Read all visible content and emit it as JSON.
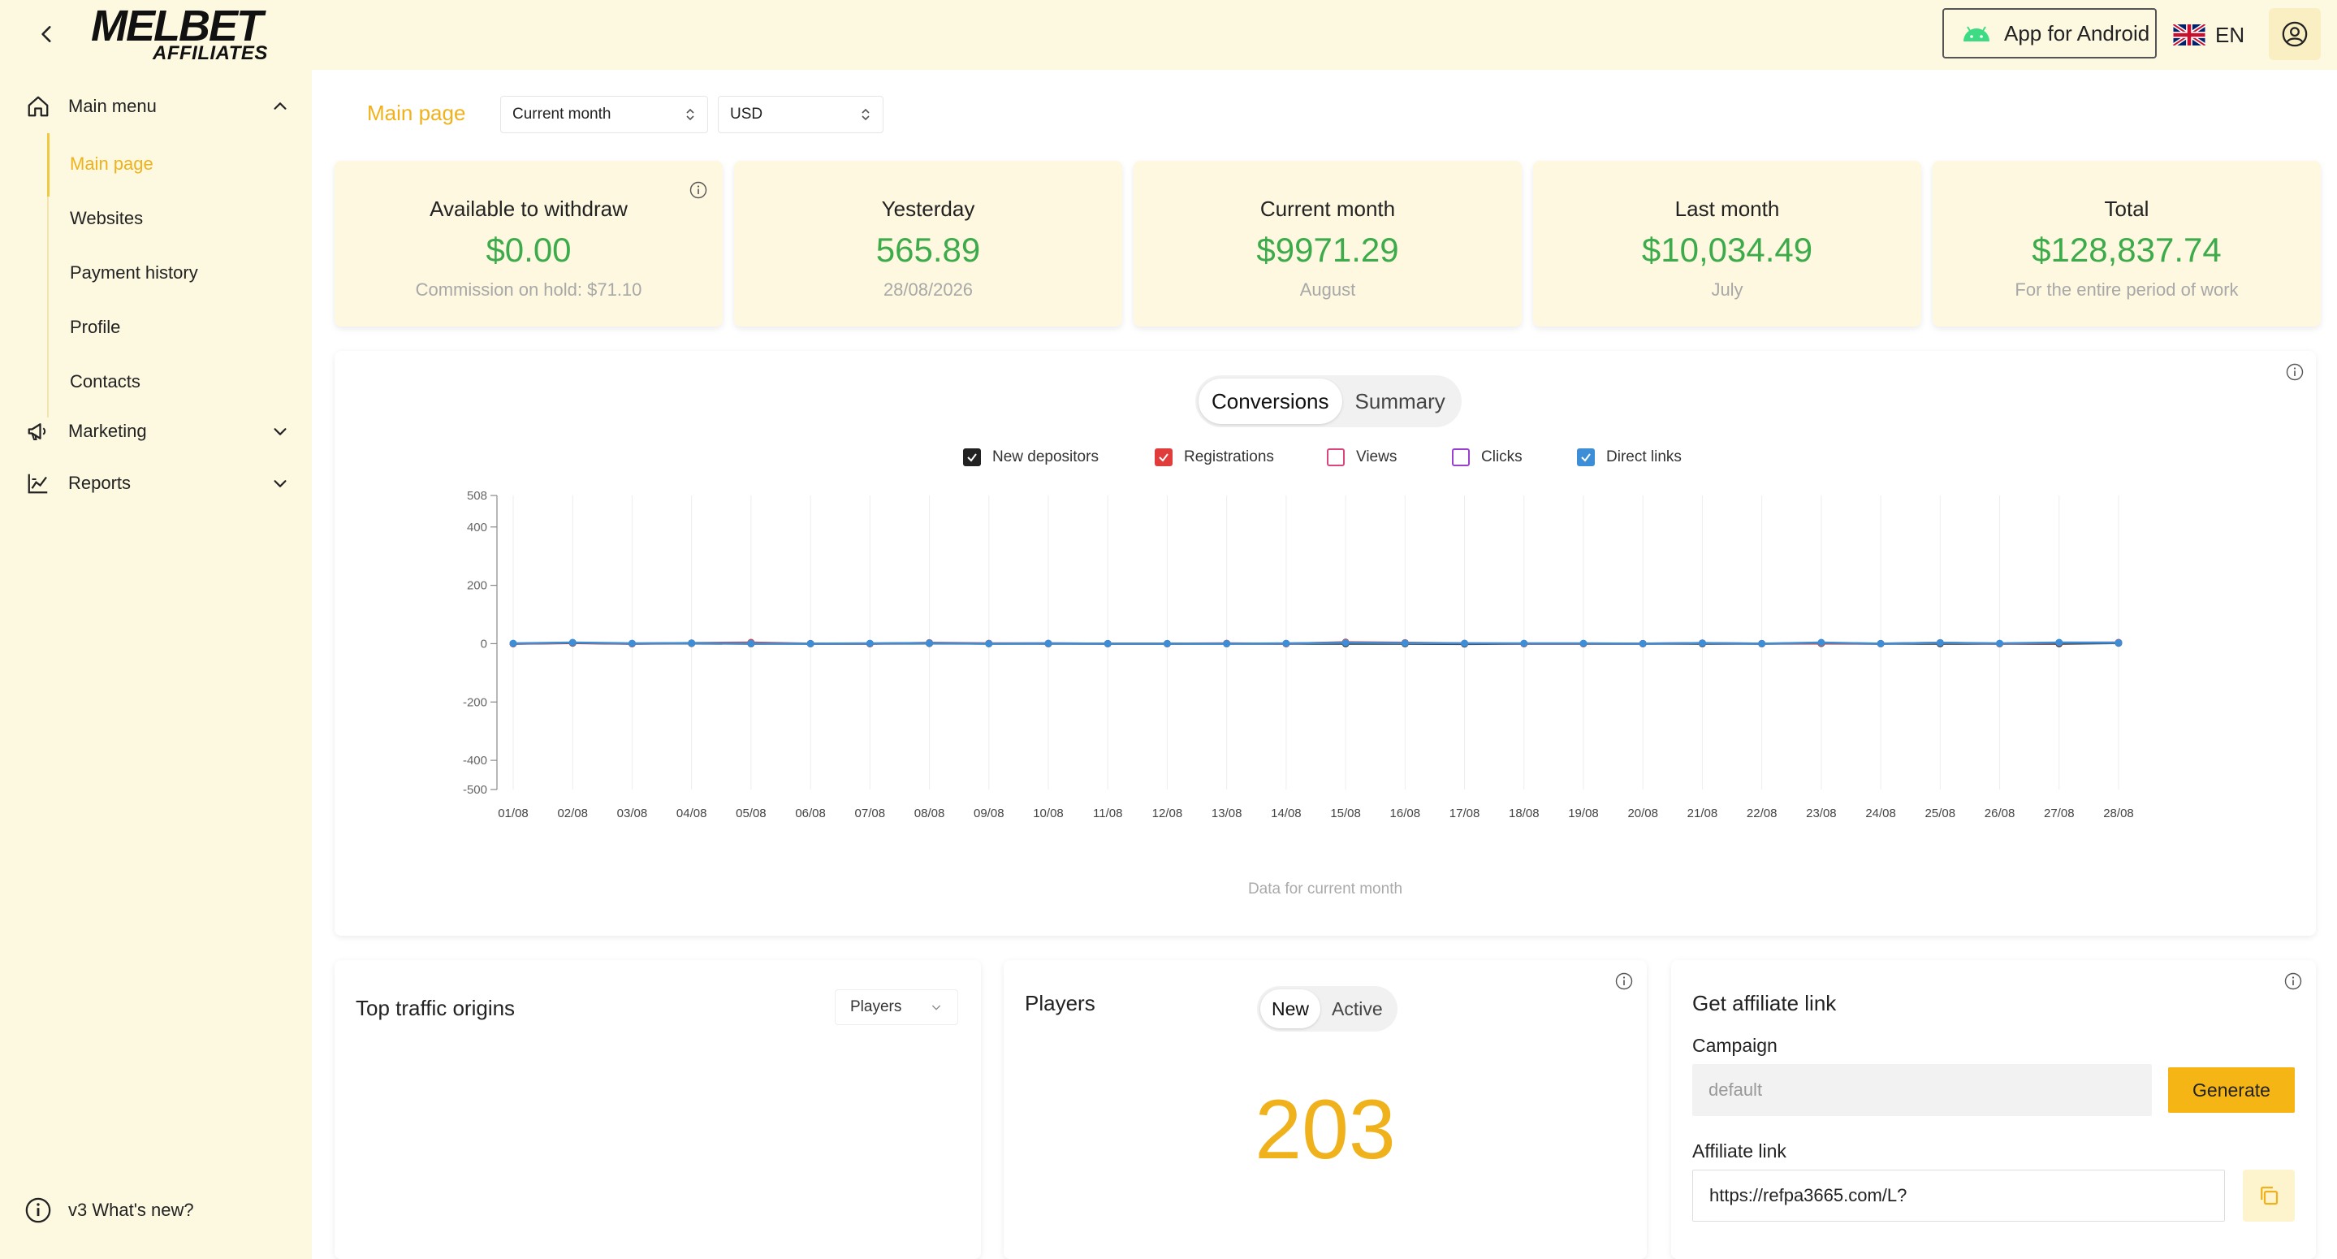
{
  "header": {
    "logo_main": "MELBET",
    "logo_sub": "AFFILIATES",
    "android_label": "App for Android",
    "lang_label": "EN"
  },
  "sidebar": {
    "main_menu": "Main menu",
    "sub_items": [
      "Main page",
      "Websites",
      "Payment history",
      "Profile",
      "Contacts"
    ],
    "marketing": "Marketing",
    "reports": "Reports",
    "whats_new": "v3 What's new?"
  },
  "toolbar": {
    "breadcrumb": "Main page",
    "period": "Current month",
    "currency": "USD"
  },
  "stats": [
    {
      "title": "Available to withdraw",
      "value": "$0.00",
      "sub": "Commission on hold: $71.10"
    },
    {
      "title": "Yesterday",
      "value": "565.89",
      "sub": "28/08/2026"
    },
    {
      "title": "Current month",
      "value": "$9971.29",
      "sub": "August"
    },
    {
      "title": "Last month",
      "value": "$10,034.49",
      "sub": "July"
    },
    {
      "title": "Total",
      "value": "$128,837.74",
      "sub": "For the entire period of work"
    }
  ],
  "chart_tabs": {
    "conversions": "Conversions",
    "summary": "Summary"
  },
  "legend": [
    {
      "name": "New depositors",
      "checked": true,
      "color": "#222222"
    },
    {
      "name": "Registrations",
      "checked": true,
      "color": "#e03c3c"
    },
    {
      "name": "Views",
      "checked": false,
      "color": "#d9467e"
    },
    {
      "name": "Clicks",
      "checked": false,
      "color": "#9a3fcf"
    },
    {
      "name": "Direct links",
      "checked": true,
      "color": "#3d8ed6"
    }
  ],
  "chart_footer": "Data for current month",
  "chart_data": {
    "type": "line",
    "x": [
      "01/08",
      "02/08",
      "03/08",
      "04/08",
      "05/08",
      "06/08",
      "07/08",
      "08/08",
      "09/08",
      "10/08",
      "11/08",
      "12/08",
      "13/08",
      "14/08",
      "15/08",
      "16/08",
      "17/08",
      "18/08",
      "19/08",
      "20/08",
      "21/08",
      "22/08",
      "23/08",
      "24/08",
      "25/08",
      "26/08",
      "27/08",
      "28/08"
    ],
    "y_ticks": [
      508,
      400,
      200,
      0,
      -200,
      -400,
      -500
    ],
    "ylim": [
      -500,
      508
    ],
    "series": [
      {
        "name": "New depositors",
        "color": "#333333",
        "values": [
          0,
          2,
          0,
          1,
          0,
          0,
          0,
          1,
          0,
          0,
          0,
          0,
          0,
          0,
          0,
          0,
          -1,
          0,
          0,
          0,
          0,
          0,
          1,
          0,
          0,
          0,
          0,
          2
        ]
      },
      {
        "name": "Registrations",
        "color": "#e03c3c",
        "values": [
          0,
          3,
          0,
          2,
          4,
          0,
          0,
          3,
          1,
          1,
          0,
          0,
          1,
          0,
          5,
          3,
          1,
          0,
          0,
          0,
          2,
          0,
          2,
          0,
          3,
          0,
          3,
          4
        ]
      },
      {
        "name": "Direct links",
        "color": "#3d8ed6",
        "values": [
          1,
          4,
          1,
          2,
          1,
          0,
          1,
          2,
          0,
          1,
          0,
          0,
          0,
          1,
          3,
          2,
          1,
          1,
          1,
          0,
          2,
          0,
          4,
          0,
          3,
          1,
          4,
          3
        ]
      }
    ]
  },
  "traffic": {
    "title": "Top traffic origins",
    "select": "Players"
  },
  "players": {
    "title": "Players",
    "tab_new": "New",
    "tab_active": "Active",
    "count": "203"
  },
  "affiliate": {
    "title": "Get affiliate link",
    "campaign_label": "Campaign",
    "campaign_value": "default",
    "generate_label": "Generate",
    "link_label": "Affiliate link",
    "link_value": "https://refpa3665.com/L?"
  }
}
